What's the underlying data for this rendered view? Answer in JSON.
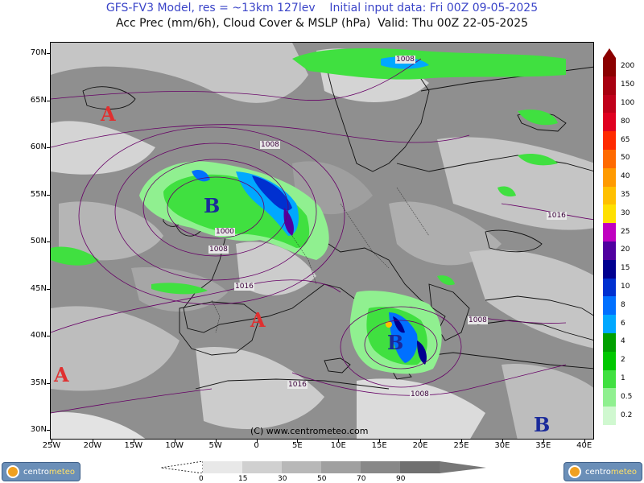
{
  "header": {
    "line1": "GFS-FV3 Model, res = ~13km 127lev    Initial input data: Fri 00Z 09-05-2025",
    "line2": "Acc Prec (mm/6h), Cloud Cover & MSLP (hPa)  Valid: Thu 00Z 22-05-2025"
  },
  "axes": {
    "latitude": [
      "70N",
      "65N",
      "60N",
      "55N",
      "50N",
      "45N",
      "40N",
      "35N",
      "30N"
    ],
    "longitude": [
      "25W",
      "20W",
      "15W",
      "10W",
      "5W",
      "0",
      "5E",
      "10E",
      "15E",
      "20E",
      "25E",
      "30E",
      "35E",
      "40E"
    ]
  },
  "precip_legend": {
    "labels": [
      "200",
      "150",
      "100",
      "80",
      "65",
      "50",
      "40",
      "35",
      "30",
      "25",
      "20",
      "15",
      "10",
      "8",
      "6",
      "4",
      "2",
      "1",
      "0.5",
      "0.2"
    ],
    "colors": [
      "#8b0000",
      "#a80010",
      "#c0001a",
      "#e00020",
      "#ff2a00",
      "#ff6a00",
      "#ff9a00",
      "#ffc000",
      "#ffe000",
      "#c000c0",
      "#5000a0",
      "#000090",
      "#0030d0",
      "#0070ff",
      "#00a8ff",
      "#00a000",
      "#00c800",
      "#40e040",
      "#90f090",
      "#d0f8d0"
    ]
  },
  "cloud_legend": {
    "labels": [
      "0",
      "15",
      "30",
      "50",
      "70",
      "90"
    ],
    "colors": [
      "#e8e8e8",
      "#d0d0d0",
      "#b8b8b8",
      "#a0a0a0",
      "#888888",
      "#707070"
    ]
  },
  "pressure_centers": [
    {
      "letter": "A",
      "color": "#e03030",
      "name": "high-iceland"
    },
    {
      "letter": "B",
      "color": "#1a2a9a",
      "name": "low-britain"
    },
    {
      "letter": "A",
      "color": "#e03030",
      "name": "high-iberia"
    },
    {
      "letter": "A",
      "color": "#e03030",
      "name": "high-atlantic-sw"
    },
    {
      "letter": "B",
      "color": "#1a2a9a",
      "name": "low-italy"
    },
    {
      "letter": "B",
      "color": "#1a2a9a",
      "name": "low-levant"
    }
  ],
  "isobar_labels": [
    "1008",
    "1008",
    "1016",
    "1000",
    "1008",
    "1016",
    "1008",
    "1016",
    "1008"
  ],
  "copyright": "(C) www.centrometeo.com",
  "logo": {
    "part1": "centro",
    "part2": "meteo"
  }
}
